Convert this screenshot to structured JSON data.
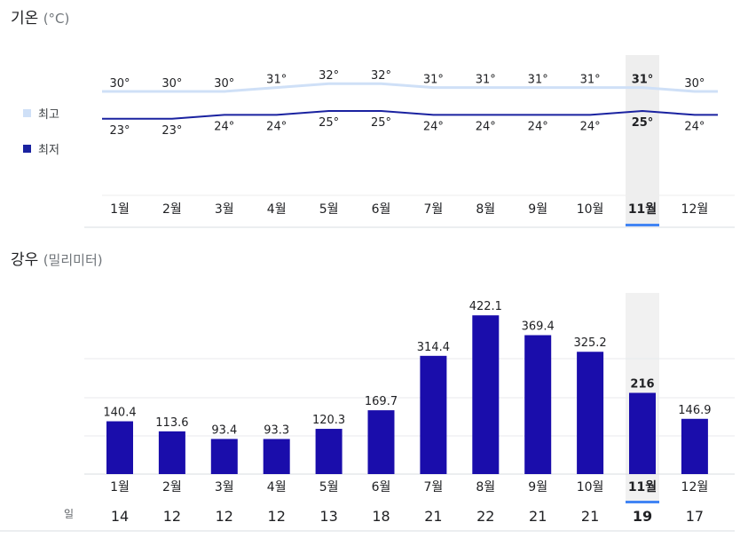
{
  "temperature": {
    "title": "기온",
    "unit": "(°C)",
    "legend_max": "최고",
    "legend_min": "최저",
    "max_color": "#cfe0f7",
    "min_color": "#1a22a0",
    "selected_index": 10
  },
  "rainfall": {
    "title": "강우",
    "unit": "(밀리미터)",
    "bar_color": "#1a0dab",
    "days_label": "일"
  },
  "accent_color": "#4285f4",
  "chart_data": [
    {
      "type": "line",
      "title": "기온 (°C)",
      "categories": [
        "1월",
        "2월",
        "3월",
        "4월",
        "5월",
        "6월",
        "7월",
        "8월",
        "9월",
        "10월",
        "11월",
        "12월"
      ],
      "series": [
        {
          "name": "최고",
          "values": [
            30,
            30,
            30,
            31,
            32,
            32,
            31,
            31,
            31,
            31,
            31,
            30
          ],
          "labels": [
            "30°",
            "30°",
            "30°",
            "31°",
            "32°",
            "32°",
            "31°",
            "31°",
            "31°",
            "31°",
            "31°",
            "30°"
          ]
        },
        {
          "name": "최저",
          "values": [
            23,
            23,
            24,
            24,
            25,
            25,
            24,
            24,
            24,
            24,
            25,
            24
          ],
          "labels": [
            "23°",
            "23°",
            "24°",
            "24°",
            "25°",
            "25°",
            "24°",
            "24°",
            "24°",
            "24°",
            "25°",
            "24°"
          ]
        }
      ],
      "legend": "left"
    },
    {
      "type": "bar",
      "title": "강우 (밀리미터)",
      "categories": [
        "1월",
        "2월",
        "3월",
        "4월",
        "5월",
        "6월",
        "7월",
        "8월",
        "9월",
        "10월",
        "11월",
        "12월"
      ],
      "values": [
        140.4,
        113.6,
        93.4,
        93.3,
        120.3,
        169.7,
        314.4,
        422.1,
        369.4,
        325.2,
        216,
        146.9
      ],
      "labels": [
        "140.4",
        "113.6",
        "93.4",
        "93.3",
        "120.3",
        "169.7",
        "314.4",
        "422.1",
        "369.4",
        "325.2",
        "216",
        "146.9"
      ],
      "rain_days": [
        "14",
        "12",
        "12",
        "12",
        "13",
        "18",
        "21",
        "22",
        "21",
        "21",
        "19",
        "17"
      ]
    }
  ]
}
